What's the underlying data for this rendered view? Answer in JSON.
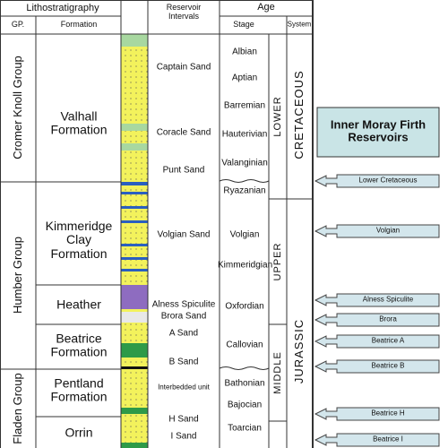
{
  "header": {
    "lithostratigraphy": "Lithostratigraphy",
    "reservoir_intervals": "Reservoir Intervals",
    "age": "Age",
    "gp": "GP.",
    "formation": "Formation",
    "stage": "Stage",
    "system": "System"
  },
  "groups": [
    "Cromer Knoll Group",
    "Humber Group",
    "Fladen Group"
  ],
  "formations": [
    "Valhall Formation",
    "Kimmeridge Clay Formation",
    "Heather",
    "Beatrice Formation",
    "Pentland Formation",
    "Orrin"
  ],
  "reservoirs": [
    "Captain Sand",
    "Coracle Sand",
    "Punt Sand",
    "Volgian Sand",
    "Alness Spiculite",
    "Brora Sand",
    "A Sand",
    "B Sand",
    "Interbedded unit",
    "H Sand",
    "I Sand"
  ],
  "stages": [
    "Albian",
    "Aptian",
    "Barremian",
    "Hauterivian",
    "Valanginian",
    "Ryazanian",
    "Volgian",
    "Kimmeridgian",
    "Oxfordian",
    "Callovian",
    "Bathonian",
    "Bajocian",
    "Toarcian"
  ],
  "series": [
    "LOWER",
    "UPPER",
    "MIDDLE"
  ],
  "systems": [
    "CRETACEOUS",
    "JURASSIC"
  ],
  "panel": {
    "title": "Inner Moray Firth Reservoirs",
    "arrows": [
      "Lower Cretaceous",
      "Volgian",
      "Alness Spiculite",
      "Brora",
      "Beatrice A",
      "Beatrice B",
      "Beatrice H",
      "Beatrice I"
    ]
  }
}
